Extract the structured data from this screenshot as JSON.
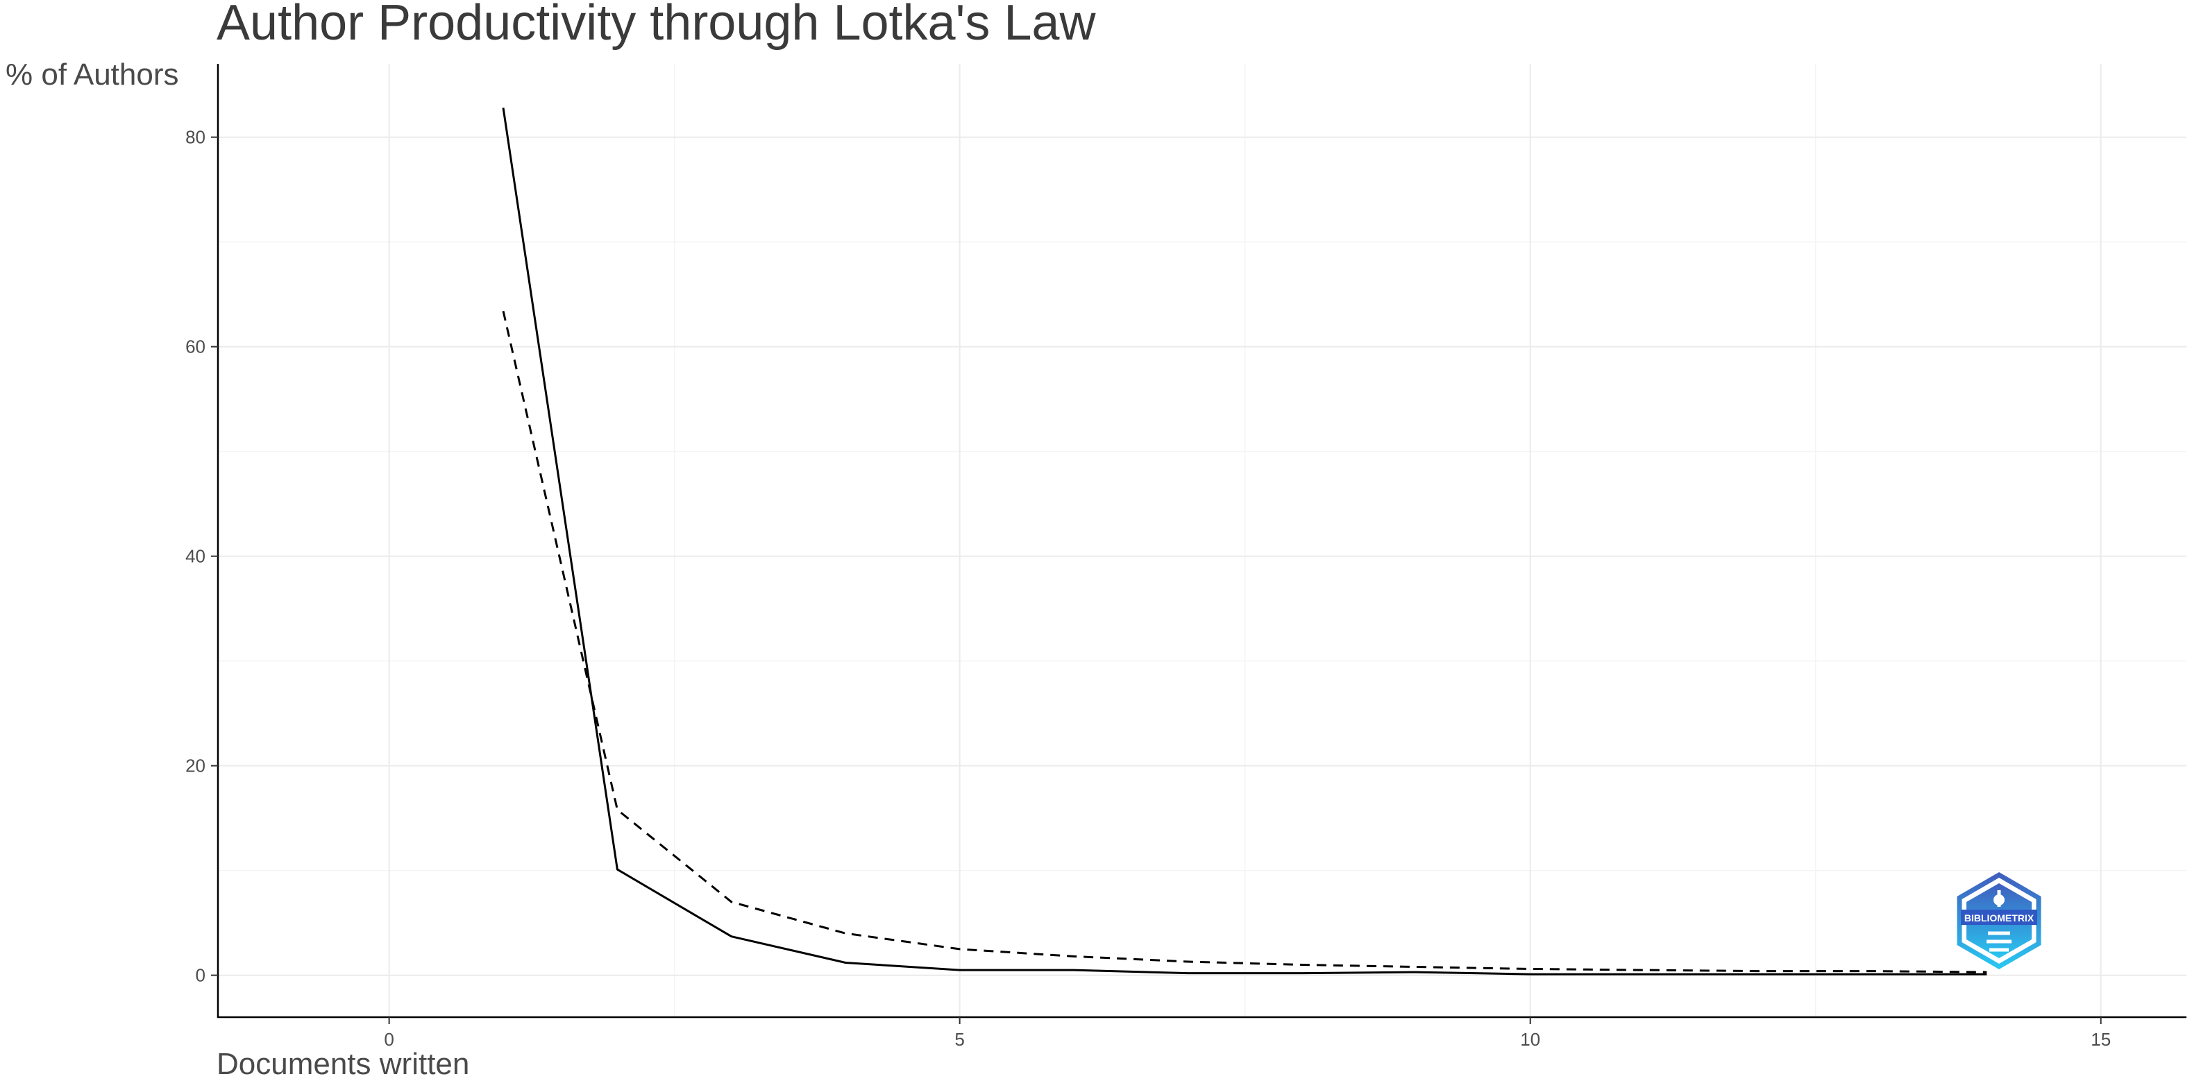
{
  "chart_data": {
    "type": "line",
    "title": "Author Productivity through Lotka's Law",
    "xlabel": "Documents written",
    "ylabel": "% of Authors",
    "xlim": [
      -1.5,
      15.75
    ],
    "ylim": [
      -4,
      87
    ],
    "x_ticks": [
      0,
      5,
      10,
      15
    ],
    "y_ticks": [
      0,
      20,
      40,
      60,
      80
    ],
    "grid": true,
    "legend": "none",
    "series": [
      {
        "style": "solid",
        "color": "#000000",
        "x": [
          1,
          2,
          3,
          4,
          5,
          6,
          7,
          8,
          9,
          10,
          11,
          12,
          13,
          14
        ],
        "y": [
          82.8,
          10.1,
          3.7,
          1.2,
          0.5,
          0.5,
          0.2,
          0.2,
          0.3,
          0.1,
          0.1,
          0.1,
          0.1,
          0.1
        ]
      },
      {
        "style": "dashed",
        "color": "#000000",
        "x": [
          1,
          2,
          3,
          4,
          5,
          6,
          7,
          8,
          9,
          10,
          11,
          12,
          13,
          14
        ],
        "y": [
          63.4,
          15.8,
          7.0,
          4.0,
          2.5,
          1.8,
          1.3,
          1.0,
          0.8,
          0.6,
          0.5,
          0.4,
          0.4,
          0.3
        ]
      }
    ]
  },
  "watermark": {
    "text": "BIBLIOMETRIX",
    "color_top": "#3f5fbf",
    "color_bottom": "#29c6f0"
  }
}
